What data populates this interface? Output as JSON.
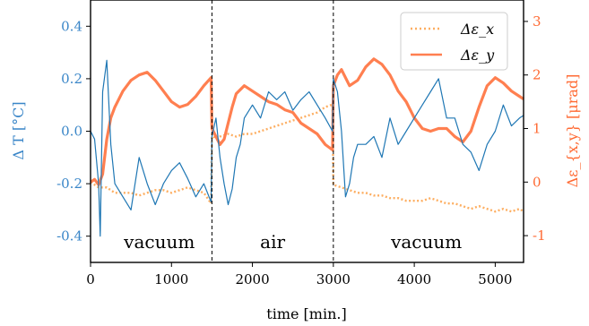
{
  "chart_data": {
    "type": "line",
    "xlabel": "time [min.]",
    "ylabel_left": "Δ T [°C]",
    "ylabel_right": "Δε_{x,y} [μrad]",
    "xlim": [
      0,
      5350
    ],
    "ylim_left": [
      -0.5,
      0.5
    ],
    "ylim_right": [
      -1.5,
      3.4
    ],
    "x_ticks": [
      "0",
      "1000",
      "2000",
      "3000",
      "4000",
      "5000"
    ],
    "left_ticks": [
      "0.4",
      "0.2",
      "0.0",
      "-0.2",
      "-0.4"
    ],
    "right_ticks": [
      "3",
      "2",
      "1",
      "0",
      "-1"
    ],
    "colors": {
      "temperature": "#1f77b4",
      "eps_x": "#fdae61",
      "eps_y": "#ff7f50",
      "left_axis": "#3a86c8",
      "right_axis": "#ff6a33"
    },
    "vlines": [
      1500,
      3000
    ],
    "regions": [
      {
        "label": "vacuum",
        "x": 850
      },
      {
        "label": "air",
        "x": 2250
      },
      {
        "label": "vacuum",
        "x": 4150
      }
    ],
    "legend": {
      "position": "top-right",
      "entries": [
        "Δε_x",
        "Δε_y"
      ]
    },
    "series": [
      {
        "key": "temperature",
        "axis": "left",
        "x": [
          0,
          50,
          100,
          120,
          150,
          200,
          250,
          300,
          400,
          500,
          600,
          700,
          800,
          900,
          1000,
          1100,
          1200,
          1300,
          1400,
          1490,
          1500,
          1550,
          1600,
          1650,
          1700,
          1750,
          1800,
          1850,
          1900,
          2000,
          2100,
          2200,
          2300,
          2400,
          2500,
          2600,
          2700,
          2800,
          2900,
          2990,
          3000,
          3050,
          3100,
          3150,
          3200,
          3250,
          3300,
          3400,
          3500,
          3600,
          3700,
          3800,
          3900,
          4000,
          4100,
          4200,
          4300,
          4400,
          4500,
          4600,
          4700,
          4800,
          4900,
          5000,
          5100,
          5200,
          5300,
          5350
        ],
        "y": [
          0.0,
          -0.03,
          -0.2,
          -0.4,
          0.15,
          0.27,
          -0.05,
          -0.2,
          -0.25,
          -0.3,
          -0.1,
          -0.2,
          -0.28,
          -0.2,
          -0.15,
          -0.12,
          -0.18,
          -0.25,
          -0.2,
          -0.27,
          -0.02,
          0.05,
          -0.1,
          -0.2,
          -0.28,
          -0.22,
          -0.1,
          -0.05,
          0.05,
          0.1,
          0.05,
          0.15,
          0.12,
          0.15,
          0.08,
          0.12,
          0.15,
          0.1,
          0.05,
          0.0,
          0.2,
          0.15,
          0.0,
          -0.25,
          -0.2,
          -0.1,
          -0.05,
          -0.05,
          -0.02,
          -0.1,
          0.05,
          -0.05,
          0.0,
          0.05,
          0.1,
          0.15,
          0.2,
          0.05,
          0.05,
          -0.05,
          -0.08,
          -0.15,
          -0.05,
          0.0,
          0.1,
          0.02,
          0.05,
          0.06
        ]
      },
      {
        "key": "eps_x",
        "axis": "right",
        "style": "dotted",
        "x": [
          0,
          100,
          200,
          300,
          400,
          500,
          600,
          700,
          800,
          900,
          1000,
          1100,
          1200,
          1300,
          1400,
          1490,
          1500,
          1550,
          1600,
          1700,
          1800,
          1900,
          2000,
          2100,
          2200,
          2300,
          2400,
          2500,
          2600,
          2700,
          2800,
          2900,
          2990,
          3000,
          3100,
          3200,
          3300,
          3400,
          3500,
          3600,
          3700,
          3800,
          3900,
          4000,
          4100,
          4200,
          4300,
          4400,
          4500,
          4600,
          4700,
          4800,
          4900,
          5000,
          5100,
          5200,
          5300,
          5350
        ],
        "y": [
          0.0,
          -0.1,
          -0.1,
          -0.2,
          -0.2,
          -0.2,
          -0.25,
          -0.2,
          -0.15,
          -0.15,
          -0.2,
          -0.15,
          -0.1,
          -0.15,
          -0.2,
          -0.4,
          0.9,
          0.8,
          0.85,
          0.9,
          0.85,
          0.9,
          0.9,
          0.95,
          1.0,
          1.05,
          1.1,
          1.15,
          1.2,
          1.25,
          1.3,
          1.4,
          1.45,
          -0.05,
          -0.1,
          -0.15,
          -0.2,
          -0.2,
          -0.25,
          -0.25,
          -0.3,
          -0.3,
          -0.35,
          -0.35,
          -0.35,
          -0.3,
          -0.35,
          -0.4,
          -0.4,
          -0.45,
          -0.5,
          -0.45,
          -0.5,
          -0.55,
          -0.5,
          -0.55,
          -0.5,
          -0.55
        ]
      },
      {
        "key": "eps_y",
        "axis": "right",
        "style": "solid",
        "x": [
          0,
          50,
          100,
          150,
          200,
          250,
          300,
          400,
          500,
          600,
          700,
          800,
          900,
          1000,
          1100,
          1200,
          1300,
          1400,
          1490,
          1500,
          1550,
          1600,
          1650,
          1700,
          1750,
          1800,
          1900,
          2000,
          2100,
          2200,
          2300,
          2400,
          2500,
          2600,
          2700,
          2800,
          2900,
          2990,
          3000,
          3050,
          3100,
          3200,
          3300,
          3400,
          3500,
          3600,
          3700,
          3800,
          3900,
          4000,
          4100,
          4200,
          4300,
          4400,
          4500,
          4600,
          4700,
          4800,
          4900,
          5000,
          5100,
          5200,
          5300,
          5350
        ],
        "y": [
          0.0,
          0.05,
          -0.05,
          0.15,
          0.8,
          1.2,
          1.4,
          1.7,
          1.9,
          2.0,
          2.05,
          1.9,
          1.7,
          1.5,
          1.4,
          1.45,
          1.6,
          1.8,
          1.95,
          1.0,
          0.85,
          0.7,
          0.8,
          1.1,
          1.4,
          1.65,
          1.8,
          1.7,
          1.6,
          1.5,
          1.45,
          1.35,
          1.3,
          1.1,
          1.0,
          0.9,
          0.7,
          0.6,
          1.8,
          2.0,
          2.1,
          1.8,
          1.9,
          2.15,
          2.3,
          2.2,
          2.0,
          1.7,
          1.5,
          1.2,
          1.0,
          0.95,
          1.0,
          1.0,
          0.85,
          0.75,
          0.95,
          1.4,
          1.8,
          1.95,
          1.85,
          1.7,
          1.6,
          1.55
        ]
      }
    ]
  }
}
